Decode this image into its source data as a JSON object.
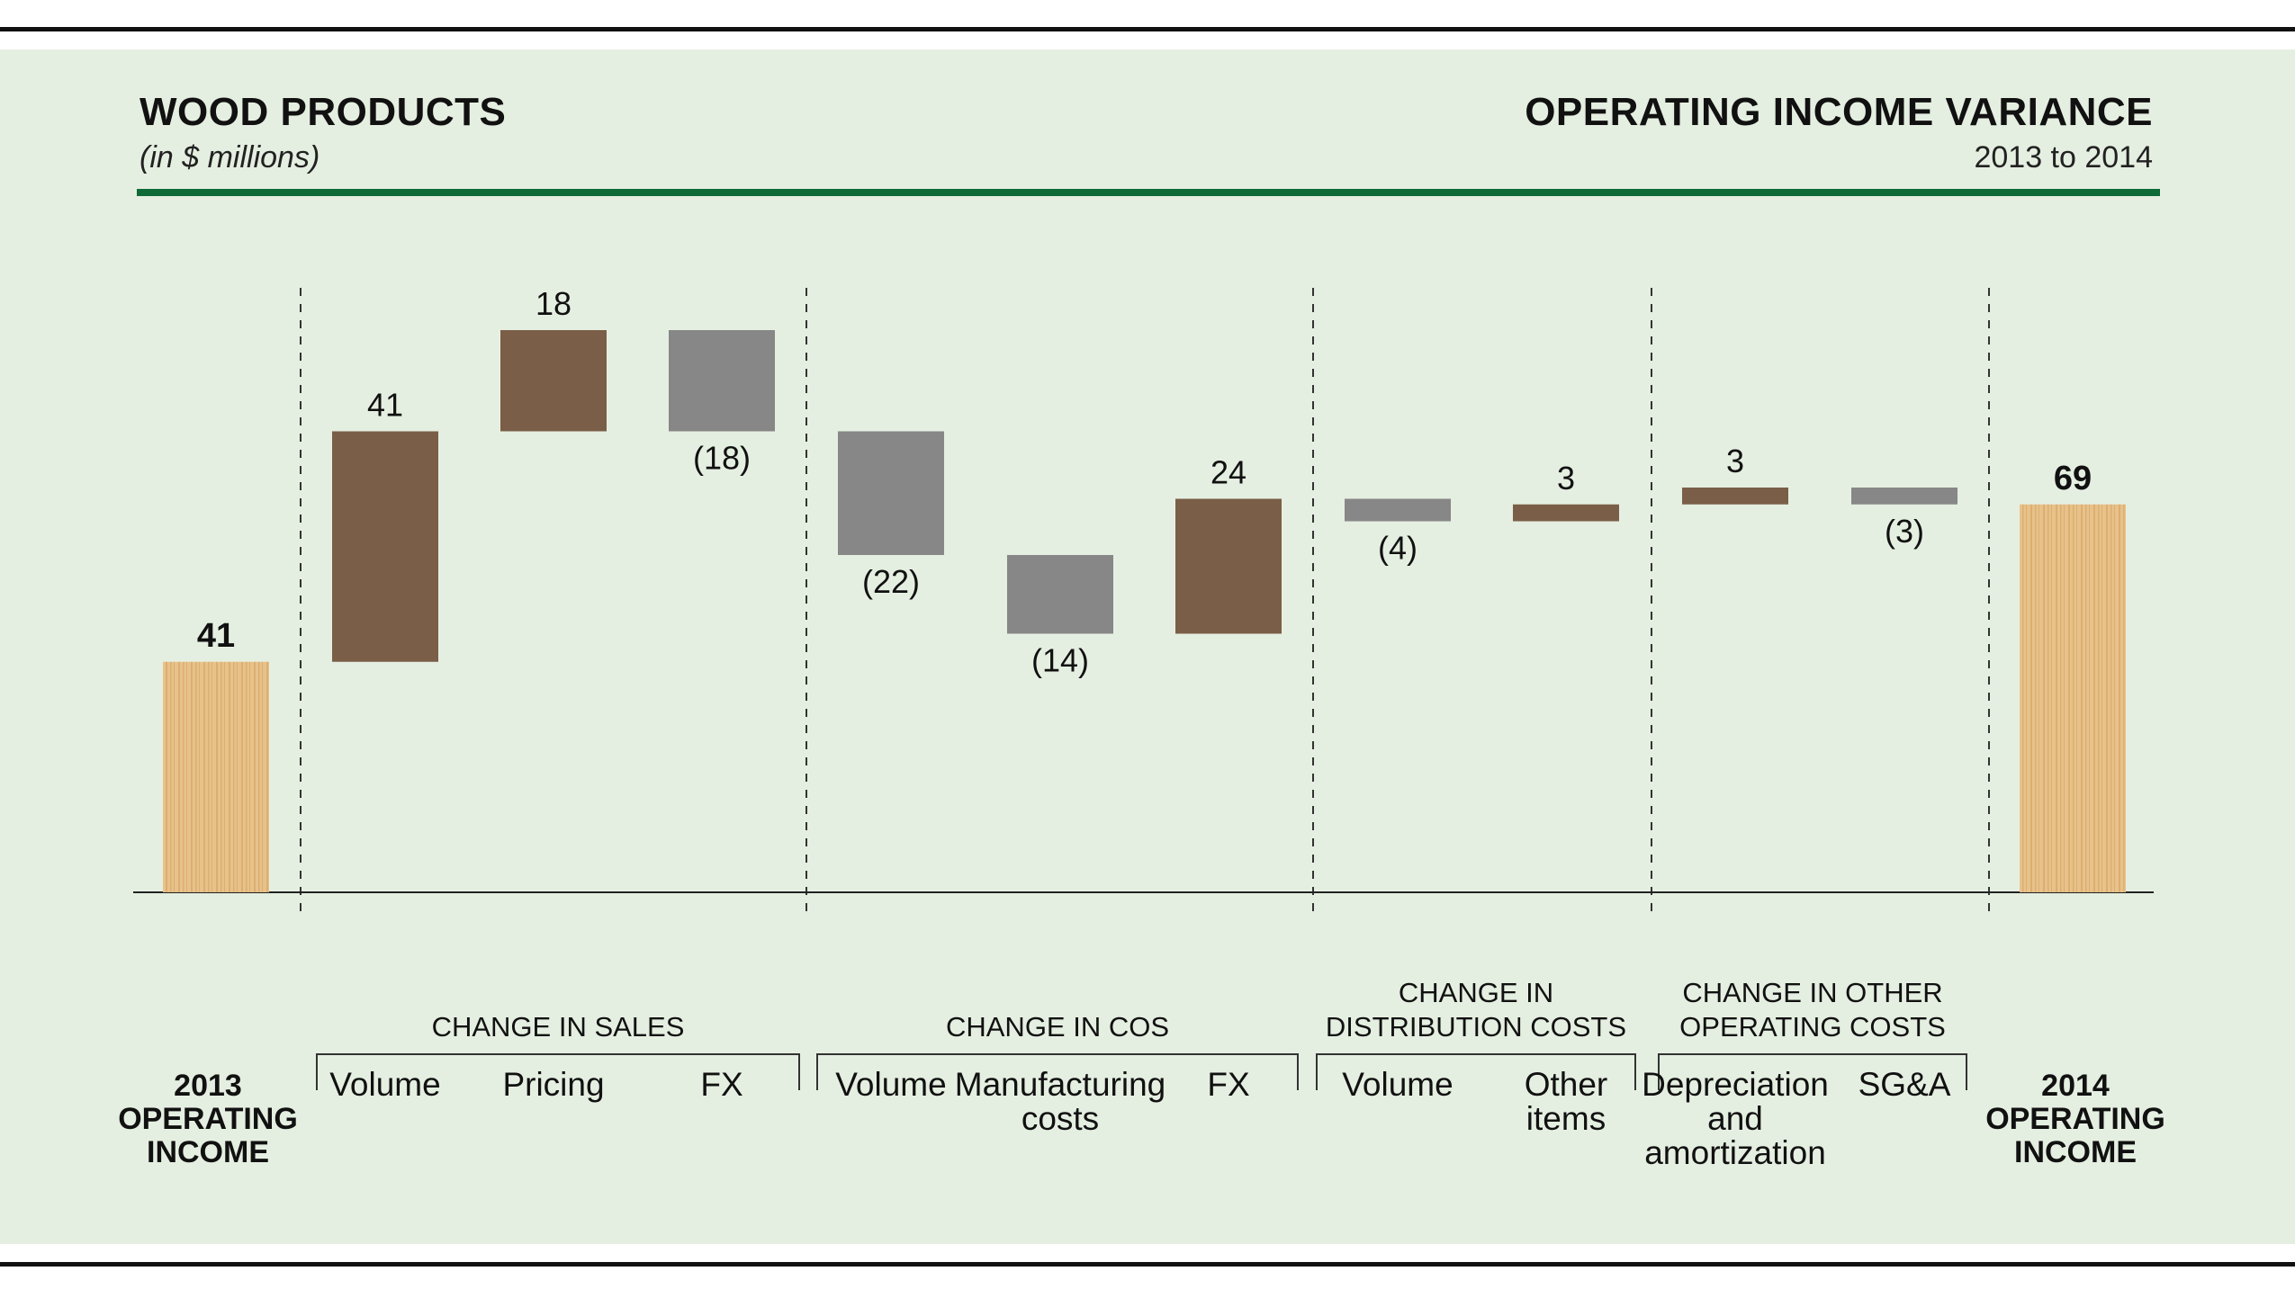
{
  "header": {
    "title_left": "WOOD PRODUCTS",
    "subtitle_left": "(in $ millions)",
    "title_right": "OPERATING INCOME VARIANCE",
    "subtitle_right": "2013 to 2014"
  },
  "colors": {
    "background": "#e5efe1",
    "header_rule": "#0e6b38",
    "positive": "#7a5e48",
    "negative": "#878787",
    "wood_light": "#e7c28b",
    "wood_dark": "#d9a665"
  },
  "chart_data": {
    "type": "waterfall",
    "ylim": [
      0,
      80
    ],
    "start": {
      "label": "2013 OPERATING INCOME",
      "value": 41,
      "value_label": "41"
    },
    "end": {
      "label": "2014 OPERATING INCOME",
      "value": 69,
      "value_label": "69"
    },
    "groups": [
      {
        "title": "CHANGE IN SALES",
        "items": [
          {
            "category": "Volume",
            "value": 41,
            "value_label": "41"
          },
          {
            "category": "Pricing",
            "value": 18,
            "value_label": "18"
          },
          {
            "category": "FX",
            "value": -18,
            "value_label": "(18)"
          }
        ]
      },
      {
        "title": "CHANGE IN COS",
        "items": [
          {
            "category": "Volume",
            "value": -22,
            "value_label": "(22)"
          },
          {
            "category": "Manufacturing costs",
            "value": -14,
            "value_label": "(14)"
          },
          {
            "category": "FX",
            "value": 24,
            "value_label": "24"
          }
        ]
      },
      {
        "title": "CHANGE IN DISTRIBUTION COSTS",
        "items": [
          {
            "category": "Volume",
            "value": -4,
            "value_label": "(4)"
          },
          {
            "category": "Other items",
            "value": 3,
            "value_label": "3"
          }
        ]
      },
      {
        "title": "CHANGE IN OTHER OPERATING COSTS",
        "items": [
          {
            "category": "Depreciation and amortization",
            "value": 3,
            "value_label": "3"
          },
          {
            "category": "SG&A",
            "value": -3,
            "value_label": "(3)"
          }
        ]
      }
    ]
  }
}
